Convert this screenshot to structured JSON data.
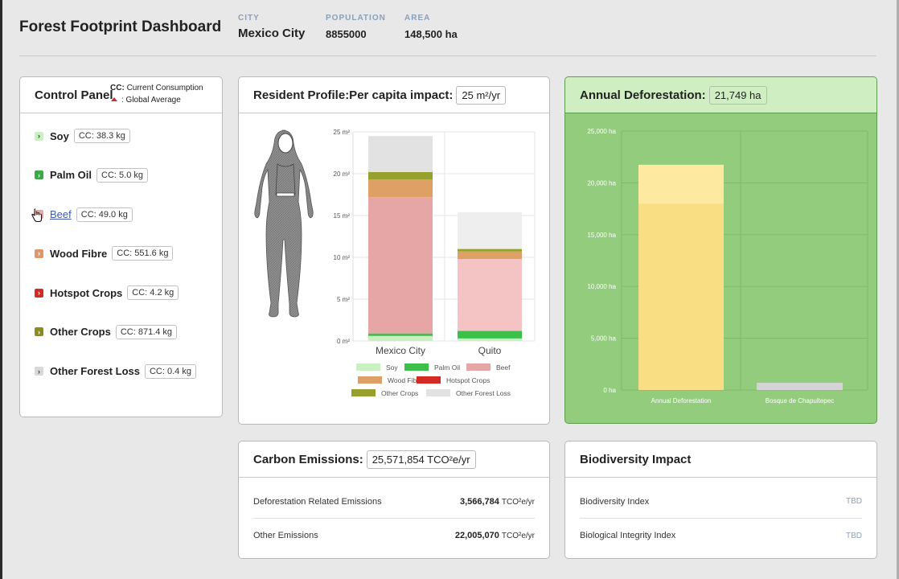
{
  "header": {
    "title": "Forest Footprint Dashboard",
    "city_label": "CITY",
    "city": "Mexico City",
    "population_label": "POPULATION",
    "population": "8855000",
    "area_label": "AREA",
    "area": "148,500 ha"
  },
  "control_panel": {
    "title": "Control Panel",
    "legend_cc_key": "CC:",
    "legend_cc": "Current Consumption",
    "legend_avg": ": Global Average",
    "items": [
      {
        "name": "Soy",
        "cc": "CC: 38.3 kg",
        "color": "#c8f0c0",
        "icon": "chevron-right-icon"
      },
      {
        "name": "Palm Oil",
        "cc": "CC: 5.0 kg",
        "color": "#3aa844",
        "icon": "chevron-right-icon"
      },
      {
        "name": "Beef",
        "cc": "CC: 49.0 kg",
        "color": "#e6a6a6",
        "icon": "chevron-right-icon"
      },
      {
        "name": "Wood Fibre",
        "cc": "CC: 551.6 kg",
        "color": "#dc9868",
        "icon": "chevron-right-icon"
      },
      {
        "name": "Hotspot Crops",
        "cc": "CC: 4.2 kg",
        "color": "#d42a24",
        "icon": "chevron-right-icon"
      },
      {
        "name": "Other Crops",
        "cc": "CC: 871.4 kg",
        "color": "#8c8c18",
        "icon": "chevron-right-icon"
      },
      {
        "name": "Other Forest Loss",
        "cc": "CC: 0.4 kg",
        "color": "#d8d8d8",
        "icon": "chevron-right-icon"
      }
    ]
  },
  "resident_profile": {
    "title": "Resident Profile:Per capita impact:",
    "value": "25 m²/yr"
  },
  "deforestation": {
    "title": "Annual Deforestation:",
    "value": "21,749 ha"
  },
  "carbon": {
    "title": "Carbon Emissions:",
    "value": "25,571,854 TCO²e/yr",
    "rows": [
      {
        "label": "Deforestation Related Emissions",
        "value": "3,566,784",
        "unit": "TCO²e/yr"
      },
      {
        "label": "Other Emissions",
        "value": "22,005,070",
        "unit": "TCO²e/yr"
      }
    ]
  },
  "biodiversity": {
    "title": "Biodiversity Impact",
    "rows": [
      {
        "label": "Biodiversity Index",
        "value": "TBD"
      },
      {
        "label": "Biological Integrity Index",
        "value": "TBD"
      }
    ]
  },
  "chart_data": [
    {
      "type": "bar",
      "stacked": true,
      "categories": [
        "Mexico City",
        "Quito"
      ],
      "ylim": [
        0,
        25
      ],
      "yticks": [
        "0 m²",
        "5 m²",
        "10 m²",
        "15 m²",
        "20 m²",
        "25 m²"
      ],
      "grid": true,
      "legend": "bottom",
      "series": [
        {
          "name": "Soy",
          "color": "#c8f0c0",
          "values": [
            0.6,
            0.3
          ]
        },
        {
          "name": "Palm Oil",
          "color": "#3cc04a",
          "values": [
            0.3,
            0.9
          ]
        },
        {
          "name": "Beef",
          "color": "#e6a6a6",
          "values": [
            16.3,
            8.6
          ]
        },
        {
          "name": "Wood Fibre",
          "color": "#dfa066",
          "values": [
            2.1,
            0.9
          ]
        },
        {
          "name": "Hotspot Crops",
          "color": "#d42a24",
          "values": [
            0.0,
            0.0
          ]
        },
        {
          "name": "Other Crops",
          "color": "#97a02c",
          "values": [
            0.9,
            0.3
          ]
        },
        {
          "name": "Other Forest Loss",
          "color": "#e2e2e2",
          "values": [
            4.3,
            4.4
          ]
        }
      ]
    },
    {
      "type": "bar",
      "categories": [
        "Annual Deforestation",
        "Bosque de Chapultepec"
      ],
      "values": [
        21749,
        700
      ],
      "ylim": [
        0,
        25000
      ],
      "yticks": [
        "0 ha",
        "5,000 ha",
        "10,000 ha",
        "15,000 ha",
        "20,000 ha",
        "25,000 ha"
      ],
      "grid": true,
      "colors": [
        "#fde79a",
        "#d4d4d4"
      ]
    }
  ]
}
